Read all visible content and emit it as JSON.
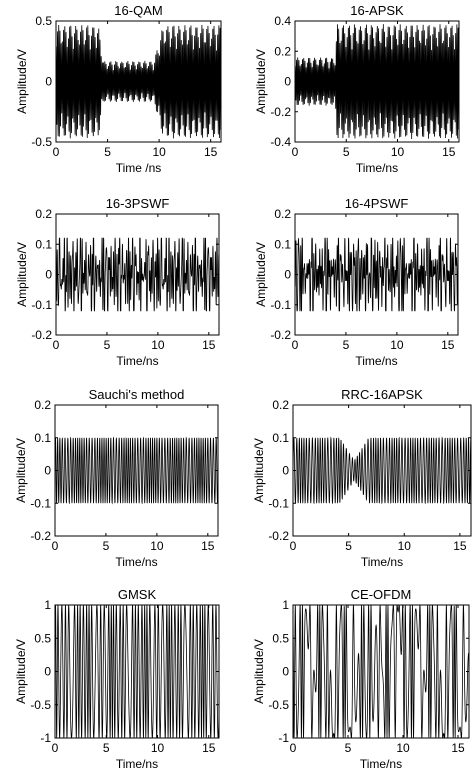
{
  "figure": {
    "background": "#ffffff",
    "line_color": "#000000"
  },
  "chart_data": [
    {
      "type": "line",
      "title": "16-QAM",
      "xlabel": "Time /ns",
      "ylabel": "Amplitude/V",
      "xlim": [
        0,
        16
      ],
      "ylim": [
        -0.5,
        0.5
      ],
      "xticks": [
        "0",
        "5",
        "10",
        "15"
      ],
      "yticks": [
        "-0.5",
        "0",
        "0.5"
      ],
      "grid": false,
      "series": [
        {
          "signal": "dense oscillating waveform",
          "freq_cycles_per_ns": 8.5,
          "envelope": [
            [
              0,
              0.47
            ],
            [
              4.1,
              0.47
            ],
            [
              4.6,
              0.17
            ],
            [
              9.5,
              0.17
            ],
            [
              10.4,
              0.47
            ],
            [
              16,
              0.47
            ]
          ]
        }
      ]
    },
    {
      "type": "line",
      "title": "16-APSK",
      "xlabel": "Time/ns",
      "ylabel": "Amplitude/V",
      "xlim": [
        0,
        16
      ],
      "ylim": [
        -0.4,
        0.4
      ],
      "xticks": [
        "0",
        "5",
        "10",
        "15"
      ],
      "yticks": [
        "-0.4",
        "-0.2",
        "0",
        "0.2",
        "0.4"
      ],
      "grid": false,
      "series": [
        {
          "signal": "dense oscillating waveform",
          "freq_cycles_per_ns": 8.5,
          "envelope": [
            [
              0,
              0.16
            ],
            [
              3.9,
              0.16
            ],
            [
              4.1,
              0.38
            ],
            [
              16,
              0.38
            ]
          ]
        }
      ]
    },
    {
      "type": "line",
      "title": "16-3PSWF",
      "xlabel": "Time/ns",
      "ylabel": "Amplitude/V",
      "xlim": [
        0,
        16
      ],
      "ylim": [
        -0.2,
        0.2
      ],
      "xticks": [
        "0",
        "5",
        "10",
        "15"
      ],
      "yticks": [
        "-0.2",
        "-0.1",
        "0",
        "0.1",
        "0.2"
      ],
      "grid": false,
      "series": [
        {
          "signal": "noise-like multicarrier waveform",
          "peak_amplitude": 0.12
        }
      ]
    },
    {
      "type": "line",
      "title": "16-4PSWF",
      "xlabel": "Time/ns",
      "ylabel": "Amplitude/V",
      "xlim": [
        0,
        16
      ],
      "ylim": [
        -0.2,
        0.2
      ],
      "xticks": [
        "0",
        "5",
        "10",
        "15"
      ],
      "yticks": [
        "-0.2",
        "-0.1",
        "0",
        "0.1",
        "0.2"
      ],
      "grid": false,
      "series": [
        {
          "signal": "noise-like multicarrier waveform",
          "peak_amplitude": 0.12
        }
      ]
    },
    {
      "type": "line",
      "title": "Sauchi's method",
      "xlabel": "Time/ns",
      "ylabel": "Amplitude/V",
      "xlim": [
        0,
        16
      ],
      "ylim": [
        -0.2,
        0.2
      ],
      "xticks": [
        "0",
        "5",
        "10",
        "15"
      ],
      "yticks": [
        "-0.2",
        "-0.1",
        "0",
        "0.1",
        "0.2"
      ],
      "grid": false,
      "series": [
        {
          "signal": "constant-envelope waveform with beat pattern",
          "peak_amplitude": 0.1,
          "freq_cycles_per_ns": 4.2
        }
      ]
    },
    {
      "type": "line",
      "title": "RRC-16APSK",
      "xlabel": "Time/ns",
      "ylabel": "Amplitude/V",
      "xlim": [
        0,
        16
      ],
      "ylim": [
        -0.2,
        0.2
      ],
      "xticks": [
        "0",
        "5",
        "10",
        "15"
      ],
      "yticks": [
        "-0.2",
        "-0.1",
        "0",
        "0.1",
        "0.2"
      ],
      "grid": false,
      "series": [
        {
          "signal": "oscillating waveform with dip near 5.5 ns",
          "peak_amplitude": 0.1,
          "freq_cycles_per_ns": 4.2,
          "envelope": [
            [
              0,
              0.1
            ],
            [
              4.2,
              0.1
            ],
            [
              5.5,
              0.03
            ],
            [
              6.8,
              0.1
            ],
            [
              16,
              0.1
            ]
          ]
        }
      ]
    },
    {
      "type": "line",
      "title": "GMSK",
      "xlabel": "Time/ns",
      "ylabel": "Amplitude/V",
      "xlim": [
        0,
        16
      ],
      "ylim": [
        -1,
        1
      ],
      "xticks": [
        "0",
        "5",
        "10",
        "15"
      ],
      "yticks": [
        "-1",
        "-0.5",
        "0",
        "0.5",
        "1"
      ],
      "grid": false,
      "series": [
        {
          "signal": "constant-envelope FM waveform",
          "peak_amplitude": 1,
          "freq_cycles_per_ns": 3.0
        }
      ]
    },
    {
      "type": "line",
      "title": "CE-OFDM",
      "xlabel": "Time/ns",
      "ylabel": "Amplitude/V",
      "xlim": [
        0,
        16
      ],
      "ylim": [
        -1,
        1
      ],
      "xticks": [
        "0",
        "5",
        "10",
        "15"
      ],
      "yticks": [
        "-1",
        "-0.5",
        "0",
        "0.5",
        "1"
      ],
      "grid": false,
      "series": [
        {
          "signal": "constant-envelope phase-modulated waveform",
          "peak_amplitude": 1,
          "freq_cycles_per_ns": 2.2
        }
      ]
    }
  ]
}
